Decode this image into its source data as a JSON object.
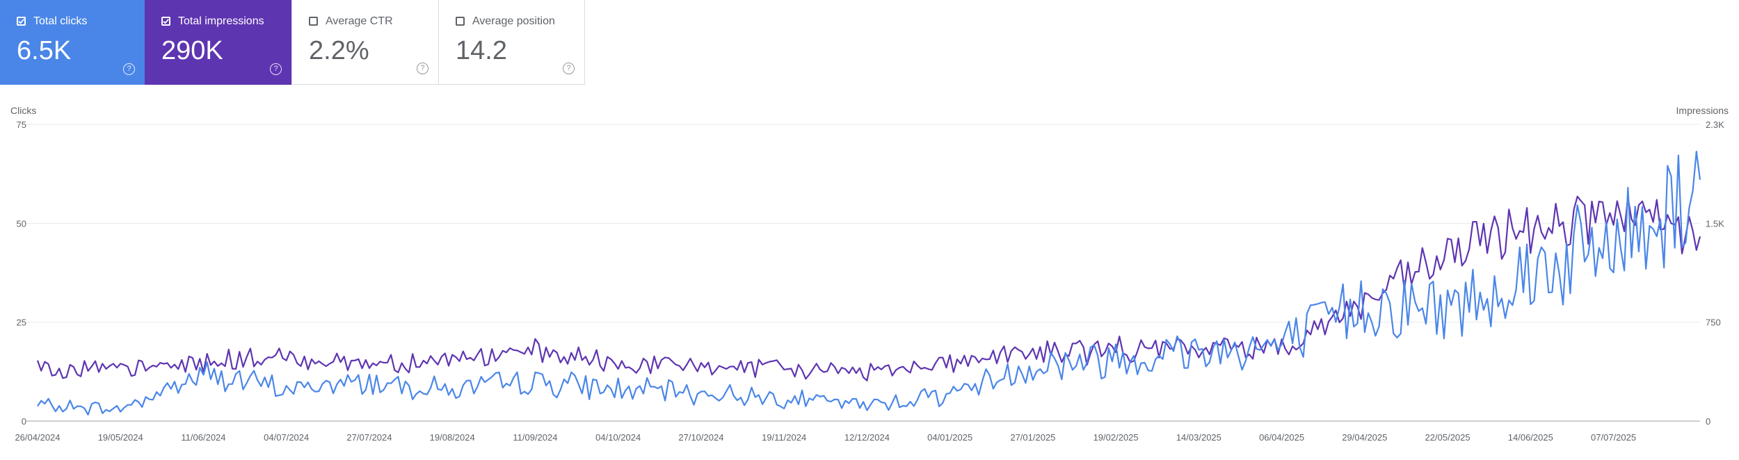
{
  "metrics": {
    "clicks": {
      "label": "Total clicks",
      "value": "6.5K",
      "color": "#4a86e8",
      "checked": true
    },
    "impressions": {
      "label": "Total impressions",
      "value": "290K",
      "color": "#5e35b1",
      "checked": true
    },
    "ctr": {
      "label": "Average CTR",
      "value": "2.2%",
      "checked": false
    },
    "position": {
      "label": "Average position",
      "value": "14.2",
      "checked": false
    },
    "help_glyph": "?"
  },
  "chart_data": {
    "type": "line",
    "left_axis_title": "Clicks",
    "right_axis_title": "Impressions",
    "y_left_ticks": [
      "0",
      "25",
      "50",
      "75"
    ],
    "y_left_range": [
      0,
      75
    ],
    "y_right_ticks": [
      "0",
      "750",
      "1.5K",
      "2.3K"
    ],
    "y_right_range": [
      0,
      2250
    ],
    "x_ticks": [
      "26/04/2024",
      "19/05/2024",
      "11/06/2024",
      "04/07/2024",
      "27/07/2024",
      "19/08/2024",
      "11/09/2024",
      "04/10/2024",
      "27/10/2024",
      "19/11/2024",
      "12/12/2024",
      "04/01/2025",
      "27/01/2025",
      "19/02/2025",
      "14/03/2025",
      "06/04/2025",
      "29/04/2025",
      "22/05/2025",
      "14/06/2025",
      "07/07/2025"
    ],
    "grid": true,
    "series": [
      {
        "name": "Total clicks",
        "axis": "left",
        "color": "#4a86e8",
        "x": [
          "26/04/2024",
          "19/05/2024",
          "11/06/2024",
          "04/07/2024",
          "27/07/2024",
          "19/08/2024",
          "11/09/2024",
          "04/10/2024",
          "27/10/2024",
          "19/11/2024",
          "12/12/2024",
          "04/01/2025",
          "27/01/2025",
          "19/02/2025",
          "14/03/2025",
          "06/04/2025",
          "29/04/2025",
          "22/05/2025",
          "14/06/2025",
          "07/07/2025",
          "31/07/2025"
        ],
        "values": [
          4,
          3,
          12,
          8,
          10,
          8,
          10,
          8,
          7,
          6,
          4,
          7,
          14,
          16,
          18,
          19,
          30,
          28,
          38,
          44,
          61
        ]
      },
      {
        "name": "Total impressions",
        "axis": "right",
        "color": "#5e35b1",
        "x": [
          "26/04/2024",
          "19/05/2024",
          "11/06/2024",
          "04/07/2024",
          "27/07/2024",
          "19/08/2024",
          "11/09/2024",
          "04/10/2024",
          "27/10/2024",
          "19/11/2024",
          "12/12/2024",
          "04/01/2025",
          "27/01/2025",
          "19/02/2025",
          "14/03/2025",
          "06/04/2025",
          "29/04/2025",
          "22/05/2025",
          "14/06/2025",
          "07/07/2025",
          "31/07/2025"
        ],
        "values": [
          420,
          380,
          450,
          480,
          440,
          470,
          520,
          430,
          420,
          390,
          380,
          450,
          520,
          540,
          550,
          570,
          900,
          1250,
          1500,
          1550,
          1400
        ]
      }
    ]
  }
}
